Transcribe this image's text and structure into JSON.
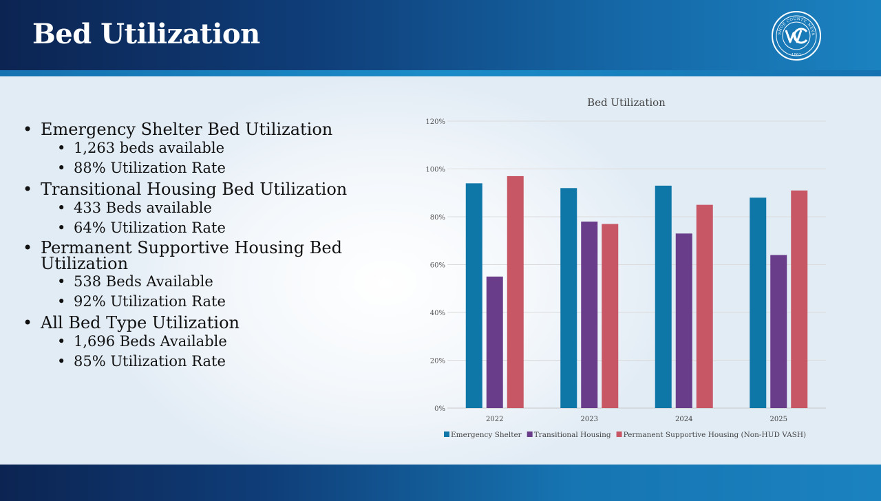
{
  "slide": {
    "title": "Bed Utilization",
    "seal_text": {
      "county": "WASHOE COUNTY, NEVADA",
      "year": "1861"
    }
  },
  "bullets": [
    {
      "label": "Emergency Shelter Bed Utilization",
      "sub": [
        "1,263 beds available",
        "88% Utilization Rate"
      ]
    },
    {
      "label": "Transitional Housing Bed Utilization",
      "sub": [
        "433 Beds available",
        "64% Utilization Rate"
      ]
    },
    {
      "label": "Permanent Supportive Housing Bed Utilization",
      "sub": [
        "538 Beds Available",
        "92% Utilization Rate"
      ]
    },
    {
      "label": "All Bed Type Utilization",
      "sub": [
        "1,696 Beds Available",
        "85% Utilization Rate"
      ]
    }
  ],
  "colors": {
    "emergency": "#0f76a8",
    "transitional": "#6a3d8a",
    "permanent": "#c85766"
  },
  "chart_data": {
    "type": "bar",
    "title": "Bed Utilization",
    "categories": [
      "2022",
      "2023",
      "2024",
      "2025"
    ],
    "series": [
      {
        "name": "Emergency Shelter",
        "values": [
          94,
          92,
          93,
          88
        ]
      },
      {
        "name": "Transitional Housing",
        "values": [
          55,
          78,
          73,
          64
        ]
      },
      {
        "name": "Permanent Supportive Housing (Non-HUD VASH)",
        "values": [
          97,
          77,
          85,
          91
        ]
      }
    ],
    "ylim": [
      0,
      120
    ],
    "yticks": [
      "0%",
      "20%",
      "40%",
      "60%",
      "80%",
      "100%",
      "120%"
    ],
    "ytick_values": [
      0,
      20,
      40,
      60,
      80,
      100,
      120
    ],
    "legend_position": "bottom",
    "grid": true
  }
}
